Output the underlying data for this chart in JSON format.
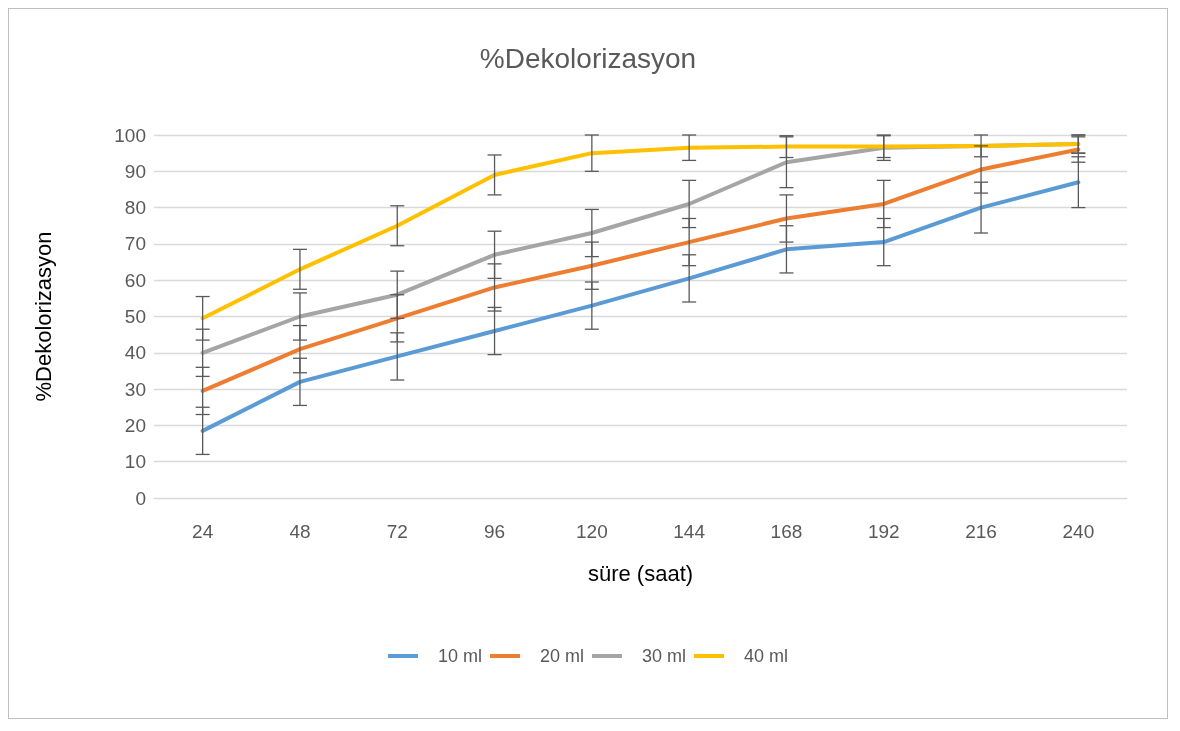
{
  "chart_data": {
    "type": "line",
    "title": "%Dekolorizasyon",
    "xlabel": "süre (saat)",
    "ylabel": "%Dekolorizasyon",
    "categories": [
      "24",
      "48",
      "72",
      "96",
      "120",
      "144",
      "168",
      "192",
      "216",
      "240"
    ],
    "series": [
      {
        "name": "10 ml",
        "color": "#5b9bd5",
        "values": [
          18.5,
          32,
          39,
          46,
          53,
          60.5,
          68.5,
          70.5,
          80,
          87
        ],
        "errors": [
          6.5,
          6.5,
          6.5,
          6.5,
          6.5,
          6.5,
          6.5,
          6.5,
          7,
          7
        ]
      },
      {
        "name": "20 ml",
        "color": "#ed7d31",
        "values": [
          29.5,
          41,
          49.5,
          58,
          64,
          70.5,
          77,
          81,
          90.5,
          96
        ],
        "errors": [
          6.5,
          6.5,
          6.5,
          6.5,
          6.5,
          6.5,
          6.5,
          6.5,
          6.5,
          3.5
        ]
      },
      {
        "name": "30 ml",
        "color": "#a5a5a5",
        "values": [
          40,
          50,
          56,
          67,
          73,
          81,
          92.5,
          96.5,
          null,
          97.5
        ],
        "errors": [
          6.5,
          6.5,
          6.5,
          6.5,
          6.5,
          6.5,
          7,
          3.5,
          null,
          2.5
        ]
      },
      {
        "name": "40 ml",
        "color": "#ffc000",
        "values": [
          49.5,
          63,
          75,
          89,
          95,
          96.5,
          96.8,
          96.8,
          97,
          97.5
        ],
        "errors": [
          6,
          5.5,
          5.5,
          5.5,
          5,
          3.5,
          3,
          3,
          3,
          2.5
        ]
      }
    ],
    "ylim": [
      0,
      100
    ],
    "yticks": [
      0,
      10,
      20,
      30,
      40,
      50,
      60,
      70,
      80,
      90,
      100
    ],
    "grid": "y",
    "legend": "bottom",
    "marker": "none",
    "line_style": "solid"
  }
}
